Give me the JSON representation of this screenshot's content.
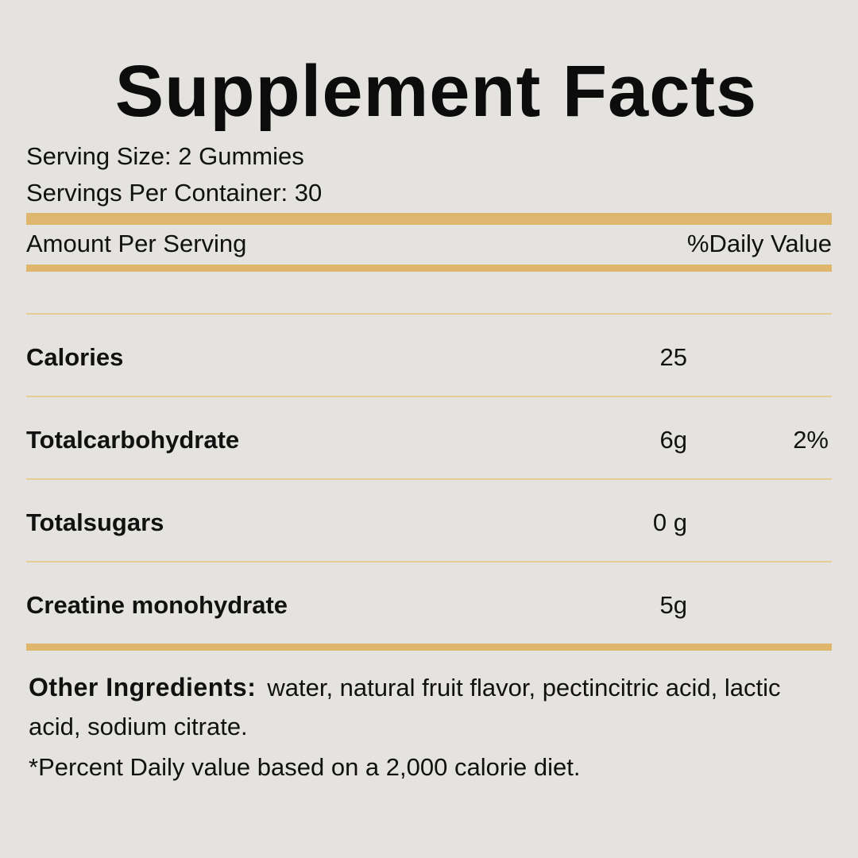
{
  "title": "Supplement Facts",
  "serving": {
    "size": "Serving Size: 2 Gummies",
    "per_container": "Servings Per Container: 30"
  },
  "header": {
    "left": "Amount Per Serving",
    "right": "%Daily Value"
  },
  "nutrients": [
    {
      "name": "Calories",
      "amount": "25",
      "dv": ""
    },
    {
      "name": "Totalcarbohydrate",
      "amount": "6g",
      "dv": "2%"
    },
    {
      "name": "Totalsugars",
      "amount": "0 g",
      "dv": ""
    },
    {
      "name": "Creatine monohydrate",
      "amount": "5g",
      "dv": ""
    }
  ],
  "other_ingredients": {
    "label": "Other Ingredients:",
    "text": "water, natural fruit flavor, pectincitric acid, lactic acid, sodium citrate."
  },
  "footnote": "*Percent Daily value based on a 2,000 calorie diet.",
  "colors": {
    "background": "#e4e3df",
    "accent_bar": "#dfb66e",
    "thin_rule": "#e6cc96",
    "text": "#111111"
  }
}
